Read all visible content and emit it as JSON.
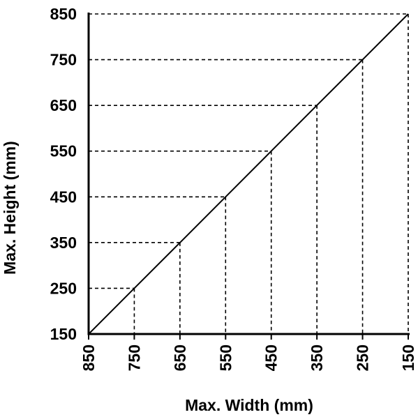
{
  "chart_data": {
    "type": "line",
    "title": "",
    "xlabel": "Max. Width (mm)",
    "ylabel": "Max. Height (mm)",
    "x_ticks": [
      850,
      750,
      650,
      550,
      450,
      350,
      250,
      150
    ],
    "y_ticks": [
      150,
      250,
      350,
      450,
      550,
      650,
      750,
      850
    ],
    "xlim": [
      850,
      150
    ],
    "ylim": [
      150,
      850
    ],
    "x_reversed": true,
    "grid": "dashed guide lines from each labeled point to both axes",
    "series": [
      {
        "name": "",
        "points": [
          {
            "x": 850,
            "y": 150
          },
          {
            "x": 750,
            "y": 250
          },
          {
            "x": 650,
            "y": 350
          },
          {
            "x": 550,
            "y": 450
          },
          {
            "x": 450,
            "y": 550
          },
          {
            "x": 350,
            "y": 650
          },
          {
            "x": 250,
            "y": 750
          },
          {
            "x": 150,
            "y": 850
          }
        ]
      }
    ]
  },
  "colors": {
    "line": "#000000",
    "guides": "#000000",
    "background": "#ffffff"
  }
}
